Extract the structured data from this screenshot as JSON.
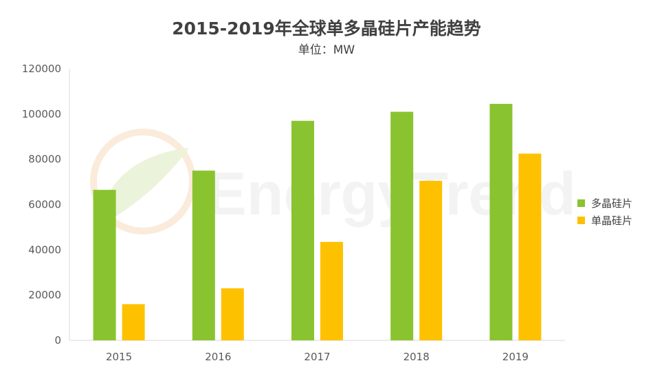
{
  "chart_data": {
    "type": "bar",
    "title": "2015-2019年全球单多晶硅片产能趋势",
    "subtitle": "单位：MW",
    "categories": [
      "2015",
      "2016",
      "2017",
      "2018",
      "2019"
    ],
    "series": [
      {
        "name": "多晶硅片",
        "color": "#8ac330",
        "values": [
          66500,
          75000,
          97000,
          101000,
          104500
        ]
      },
      {
        "name": "单晶硅片",
        "color": "#fec100",
        "values": [
          16000,
          23000,
          43500,
          70500,
          82500
        ]
      }
    ],
    "ylim": [
      0,
      120000
    ],
    "yticks": [
      "0",
      "20000",
      "40000",
      "60000",
      "80000",
      "100000",
      "120000"
    ],
    "grid": false,
    "legend_position": "right"
  },
  "watermark": {
    "text": "EnergyTrend"
  }
}
